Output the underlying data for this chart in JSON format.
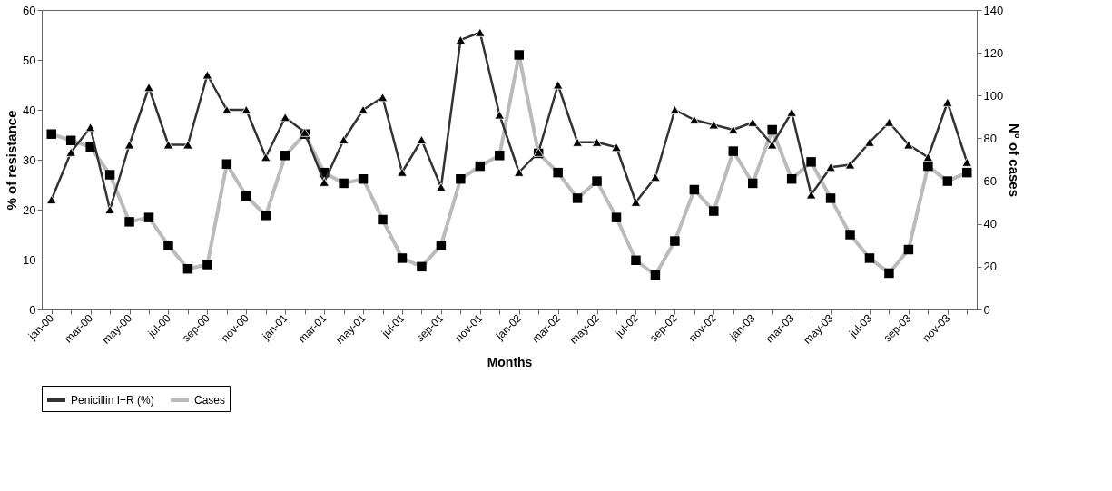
{
  "chart_data": {
    "type": "line",
    "xlabel": "Months",
    "ylabel": "% of resistance",
    "y2label": "N° of cases",
    "categories": [
      "jan-00",
      null,
      "mar-00",
      null,
      "may-00",
      null,
      "jul-00",
      null,
      "sep-00",
      null,
      "nov-00",
      null,
      "jan-01",
      null,
      "mar-01",
      null,
      "may-01",
      null,
      "jul-01",
      null,
      "sep-01",
      null,
      "nov-01",
      null,
      "jan-02",
      null,
      "mar-02",
      null,
      "may-02",
      null,
      "jul-02",
      null,
      "sep-02",
      null,
      "nov-02",
      null,
      "jan-03",
      null,
      "mar-03",
      null,
      "may-03",
      null,
      "jul-03",
      null,
      "sep-03",
      null,
      "nov-03",
      null
    ],
    "series": [
      {
        "name": "Penicillin I+R (%)",
        "color": "#333333",
        "marker": "triangle",
        "values": [
          22,
          31.5,
          36.5,
          20,
          33,
          44.5,
          33,
          33,
          47,
          40,
          40,
          30.5,
          38.5,
          35.5,
          25.5,
          34,
          40,
          42.5,
          27.5,
          34,
          24.5,
          54,
          55.5,
          39,
          27.5,
          31.5,
          45,
          33.5,
          33.5,
          32.5,
          21.5,
          26.5,
          40,
          38,
          37,
          36,
          37.5,
          33,
          39.5,
          23,
          28.5,
          29,
          33.5,
          37.5,
          33,
          30.5,
          41.5,
          29.5
        ]
      },
      {
        "name": "Cases",
        "color": "#bbbbbb",
        "marker": "square",
        "axis": "y2",
        "values": [
          82,
          79,
          76,
          63,
          41,
          43,
          30,
          19,
          21,
          68,
          53,
          44,
          72,
          82,
          64,
          59,
          61,
          42,
          24,
          20,
          30,
          61,
          67,
          72,
          119,
          73,
          64,
          52,
          60,
          43,
          23,
          16,
          32,
          56,
          46,
          74,
          59,
          84,
          61,
          69,
          52,
          35,
          24,
          17,
          28,
          67,
          60,
          64
        ]
      }
    ],
    "ylim": [
      0,
      60
    ],
    "yticks": [
      0,
      10,
      20,
      30,
      40,
      50,
      60
    ],
    "y2lim": [
      0,
      140
    ],
    "y2ticks": [
      0,
      20,
      40,
      60,
      80,
      100,
      120,
      140
    ],
    "grid": false,
    "legend": "bottom",
    "line_style": "solid"
  }
}
